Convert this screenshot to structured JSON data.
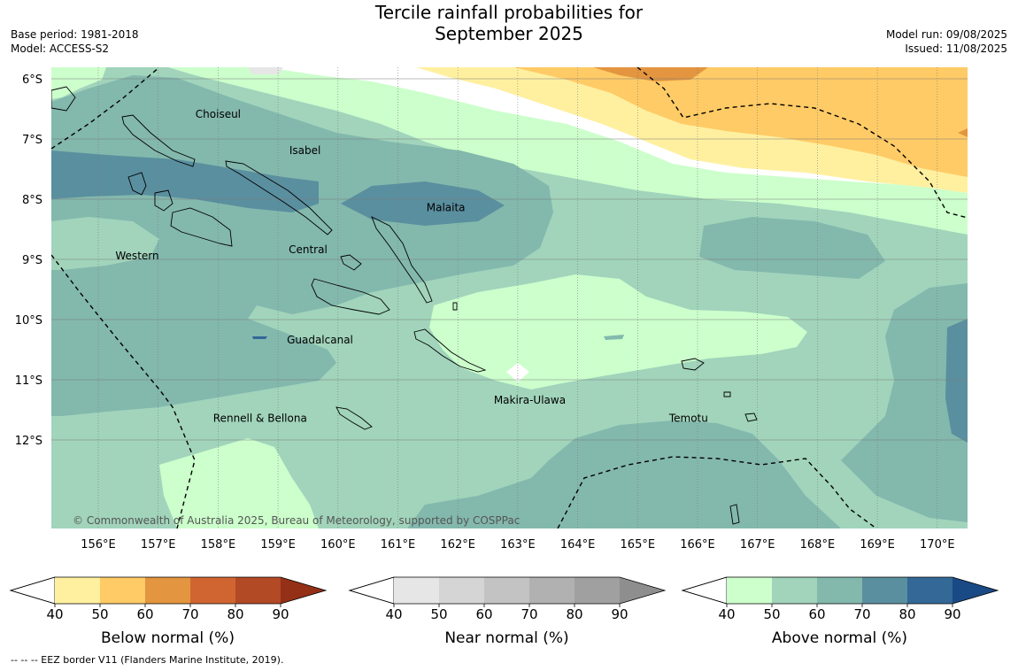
{
  "title": "Tercile rainfall probabilities for",
  "title_line2": "September 2025",
  "meta": {
    "base_period": "Base period: 1981-2018",
    "model": "Model: ACCESS-S2",
    "model_run": "Model run: 09/08/2025",
    "issued": "Issued: 11/08/2025"
  },
  "axes": {
    "lat_labels": [
      "6°S",
      "7°S",
      "8°S",
      "9°S",
      "10°S",
      "11°S",
      "12°S"
    ],
    "lon_labels": [
      "156°E",
      "157°E",
      "158°E",
      "159°E",
      "160°E",
      "161°E",
      "162°E",
      "163°E",
      "164°E",
      "165°E",
      "166°E",
      "167°E",
      "168°E",
      "169°E",
      "170°E"
    ]
  },
  "regions": [
    {
      "name": "Choiseul",
      "lon": 158.0,
      "lat": -6.65
    },
    {
      "name": "Isabel",
      "lon": 159.45,
      "lat": -7.25
    },
    {
      "name": "Malaita",
      "lon": 161.8,
      "lat": -8.2
    },
    {
      "name": "Central",
      "lon": 159.5,
      "lat": -8.9
    },
    {
      "name": "Western",
      "lon": 156.65,
      "lat": -9.0
    },
    {
      "name": "Guadalcanal",
      "lon": 159.7,
      "lat": -10.4
    },
    {
      "name": "Makira-Ulawa",
      "lon": 163.2,
      "lat": -11.4
    },
    {
      "name": "Temotu",
      "lon": 165.85,
      "lat": -11.7
    },
    {
      "name": "Rennell & Bellona",
      "lon": 158.7,
      "lat": -11.7
    }
  ],
  "copyright": "© Commonwealth of Australia 2025, Bureau of Meteorology, supported by COSPPac",
  "colorbars": [
    {
      "label": "Below normal (%)",
      "ticks": [
        "40",
        "50",
        "60",
        "70",
        "80",
        "90"
      ],
      "colors": [
        "#fff0a0",
        "#ffcb66",
        "#e3953f",
        "#d06532",
        "#b24a26",
        "#933016"
      ]
    },
    {
      "label": "Near normal (%)",
      "ticks": [
        "40",
        "50",
        "60",
        "70",
        "80",
        "90"
      ],
      "colors": [
        "#e6e6e6",
        "#d5d5d5",
        "#c3c3c3",
        "#b1b1b1",
        "#a0a0a0",
        "#8e8e8e"
      ]
    },
    {
      "label": "Above normal (%)",
      "ticks": [
        "40",
        "50",
        "60",
        "70",
        "80",
        "90"
      ],
      "colors": [
        "#ccffcc",
        "#a1d4bb",
        "#83b8ad",
        "#5a8f9f",
        "#336897",
        "#1a4a85"
      ]
    }
  ],
  "footnote": "-- -- -- EEZ border V11 (Flanders Marine Institute, 2019)."
}
